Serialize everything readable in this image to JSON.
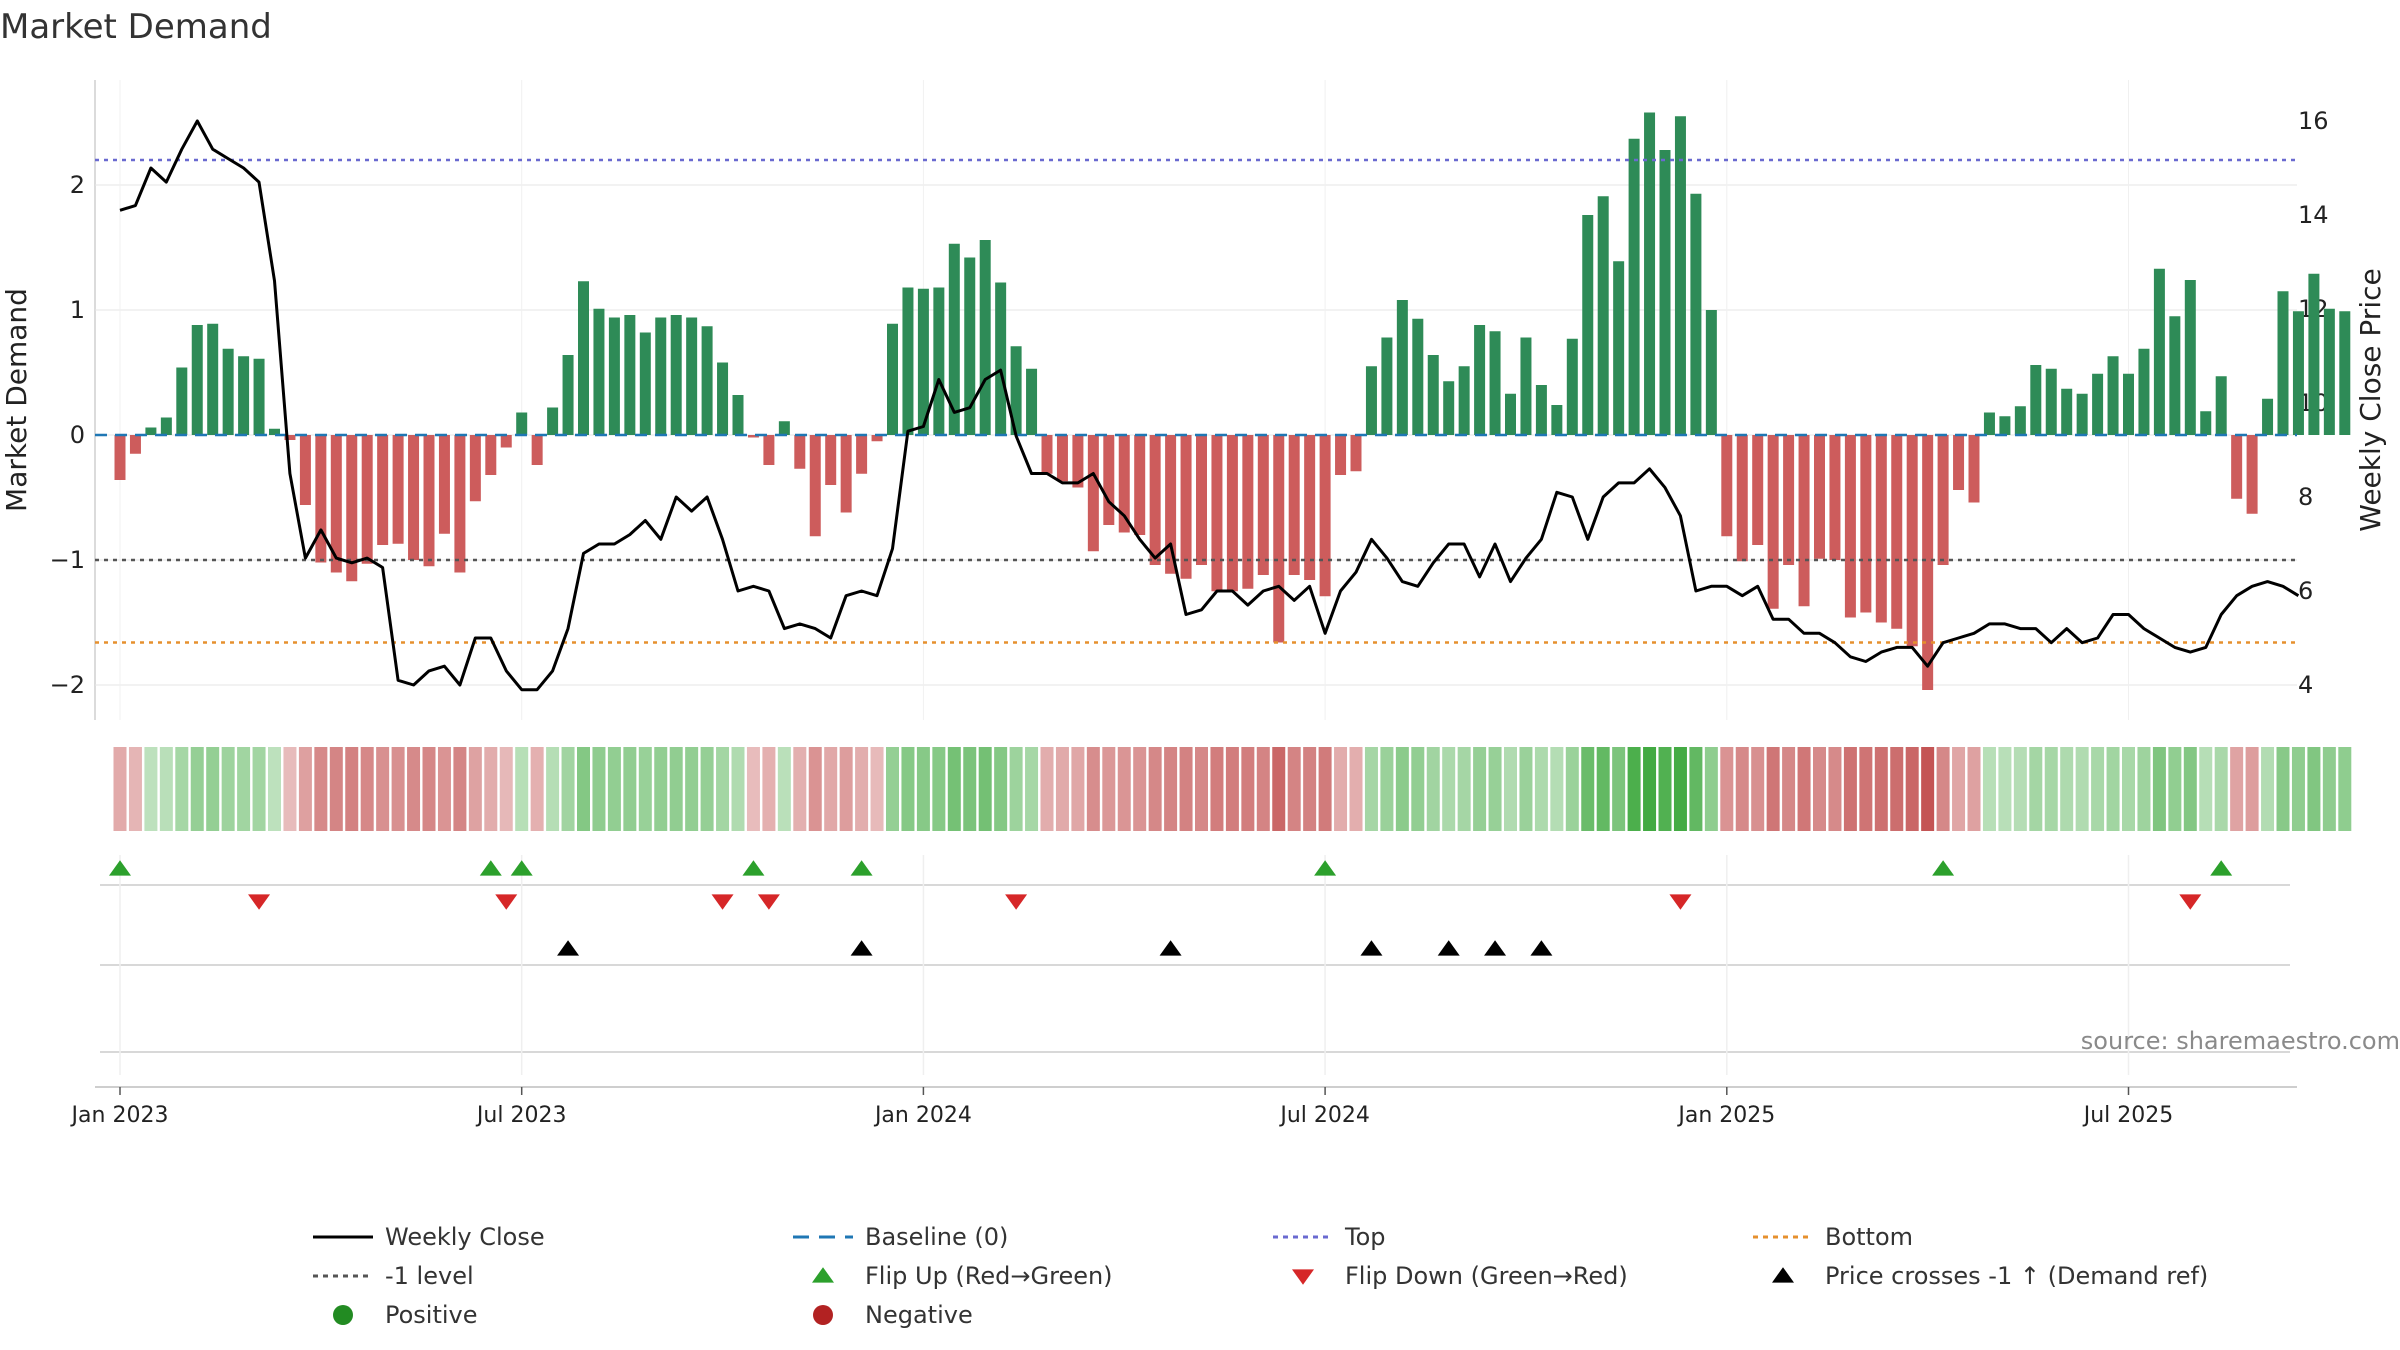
{
  "chart_data": {
    "type": "bar+line",
    "title": "Market Demand",
    "ylabel_left": "Market Demand",
    "ylabel_right": "Weekly Close Price",
    "source": "source: sharemaestro.com",
    "x_ticks": [
      "Jan 2023",
      "Jul 2023",
      "Jan 2024",
      "Jul 2024",
      "Jan 2025",
      "Jul 2025"
    ],
    "x_tick_week_index": [
      0,
      26,
      52,
      78,
      104,
      130
    ],
    "x_range_weeks": [
      -1.5,
      142.5
    ],
    "y_left": {
      "ylim": [
        -2.3,
        2.85
      ],
      "ticks": [
        2,
        1,
        0,
        -1,
        -2
      ],
      "tick_labels": [
        "2",
        "1",
        "0",
        "−1",
        "−2"
      ]
    },
    "y_right": {
      "ylim": [
        3.5,
        16.8
      ],
      "ticks": [
        16,
        14,
        12,
        10,
        8,
        6,
        4
      ],
      "tick_labels": [
        "16",
        "14",
        "12",
        "10",
        "8",
        "6",
        "4"
      ]
    },
    "reference_lines": {
      "baseline": 0,
      "minus_one_level": -1,
      "top": 2.2,
      "bottom": -1.66
    },
    "demand": [
      -0.36,
      -0.15,
      0.06,
      0.14,
      0.54,
      0.88,
      0.89,
      0.69,
      0.63,
      0.61,
      0.05,
      -0.04,
      -0.56,
      -1.02,
      -1.1,
      -1.17,
      -1.03,
      -0.88,
      -0.87,
      -1.0,
      -1.05,
      -0.79,
      -1.1,
      -0.53,
      -0.32,
      -0.1,
      0.18,
      -0.24,
      0.22,
      0.64,
      1.23,
      1.01,
      0.94,
      0.96,
      0.82,
      0.94,
      0.96,
      0.94,
      0.87,
      0.58,
      0.32,
      -0.02,
      -0.24,
      0.11,
      -0.27,
      -0.81,
      -0.4,
      -0.62,
      -0.31,
      -0.05,
      0.89,
      1.18,
      1.17,
      1.18,
      1.53,
      1.42,
      1.56,
      1.22,
      0.71,
      0.53,
      -0.31,
      -0.37,
      -0.42,
      -0.93,
      -0.72,
      -0.78,
      -0.8,
      -1.04,
      -1.11,
      -1.15,
      -1.04,
      -1.25,
      -1.25,
      -1.23,
      -1.12,
      -1.66,
      -1.12,
      -1.16,
      -1.29,
      -0.32,
      -0.29,
      0.55,
      0.78,
      1.08,
      0.93,
      0.64,
      0.43,
      0.55,
      0.88,
      0.83,
      0.33,
      0.78,
      0.4,
      0.24,
      0.77,
      1.76,
      1.91,
      1.39,
      2.37,
      2.58,
      2.28,
      2.55,
      1.93,
      1.0,
      -0.81,
      -1.01,
      -0.88,
      -1.39,
      -1.04,
      -1.37,
      -0.99,
      -1.0,
      -1.46,
      -1.42,
      -1.5,
      -1.55,
      -1.69,
      -2.04,
      -1.04,
      -0.44,
      -0.54,
      0.18,
      0.15,
      0.23,
      0.56,
      0.53,
      0.37,
      0.33,
      0.49,
      0.63,
      0.49,
      0.69,
      1.33,
      0.95,
      1.24,
      0.19,
      0.47,
      -0.51,
      -0.63,
      0.29,
      1.15,
      0.99,
      1.29,
      1.01,
      0.99
    ],
    "weekly_close": [
      14.1,
      14.2,
      15.0,
      14.7,
      15.4,
      16.0,
      15.4,
      15.2,
      15.0,
      14.7,
      12.6,
      8.5,
      6.7,
      7.3,
      6.7,
      6.6,
      6.7,
      6.5,
      4.1,
      4.0,
      4.3,
      4.4,
      4.0,
      5.0,
      5.0,
      4.3,
      3.9,
      3.9,
      4.3,
      5.2,
      6.8,
      7.0,
      7.0,
      7.2,
      7.5,
      7.1,
      8.0,
      7.7,
      8.0,
      7.1,
      6.0,
      6.1,
      6.0,
      5.2,
      5.3,
      5.2,
      5.0,
      5.9,
      6.0,
      5.9,
      6.9,
      9.4,
      9.5,
      10.5,
      9.8,
      9.9,
      10.5,
      10.7,
      9.3,
      8.5,
      8.5,
      8.3,
      8.3,
      8.5,
      7.9,
      7.6,
      7.1,
      6.7,
      7.0,
      5.5,
      5.6,
      6.0,
      6.0,
      5.7,
      6.0,
      6.1,
      5.8,
      6.1,
      5.1,
      6.0,
      6.4,
      7.1,
      6.7,
      6.2,
      6.1,
      6.6,
      7.0,
      7.0,
      6.3,
      7.0,
      6.2,
      6.7,
      7.1,
      8.1,
      8.0,
      7.1,
      8.0,
      8.3,
      8.3,
      8.6,
      8.2,
      7.6,
      6.0,
      6.1,
      6.1,
      5.9,
      6.1,
      5.4,
      5.4,
      5.1,
      5.1,
      4.9,
      4.6,
      4.5,
      4.7,
      4.8,
      4.8,
      4.4,
      4.9,
      5.0,
      5.1,
      5.3,
      5.3,
      5.2,
      5.2,
      4.9,
      5.2,
      4.9,
      5.0,
      5.5,
      5.5,
      5.2,
      5.0,
      4.8,
      4.7,
      4.8,
      5.5,
      5.9,
      6.1,
      6.2,
      6.1,
      5.9
    ],
    "flip_up_weeks": [
      0,
      24,
      26,
      41,
      48,
      78,
      118,
      136
    ],
    "flip_down_weeks": [
      9,
      25,
      39,
      42,
      58,
      101,
      134
    ],
    "price_cross_weeks": [
      29,
      48,
      68,
      81,
      86,
      89,
      92
    ],
    "colors": {
      "positive_bar": "#2e8b57",
      "negative_bar": "#cd5c5c",
      "line": "#000000",
      "baseline": "#1f77b4",
      "top": "#6a6ad0",
      "bottom": "#e6902e",
      "minus_one": "#555555",
      "flip_up": "#2ca02c",
      "flip_down": "#d62728",
      "positive_legend": "#228b22",
      "negative_legend": "#b22222",
      "grid": "#e6e6e6",
      "text": "#222222"
    },
    "legend": [
      {
        "label": "Weekly Close",
        "marker": "solid-line"
      },
      {
        "label": "Baseline (0)",
        "marker": "dashed-blue-line"
      },
      {
        "label": "Top",
        "marker": "dotted-purple-line"
      },
      {
        "label": "Bottom",
        "marker": "dotted-orange-line"
      },
      {
        "label": "-1 level",
        "marker": "dotted-gray-line"
      },
      {
        "label": "Flip Up (Red→Green)",
        "marker": "green-up-triangle"
      },
      {
        "label": "Flip Down (Green→Red)",
        "marker": "red-down-triangle"
      },
      {
        "label": "Price crosses -1 ↑ (Demand ref)",
        "marker": "black-up-triangle"
      },
      {
        "label": "Positive",
        "marker": "green-dot"
      },
      {
        "label": "Negative",
        "marker": "red-dot"
      }
    ]
  }
}
